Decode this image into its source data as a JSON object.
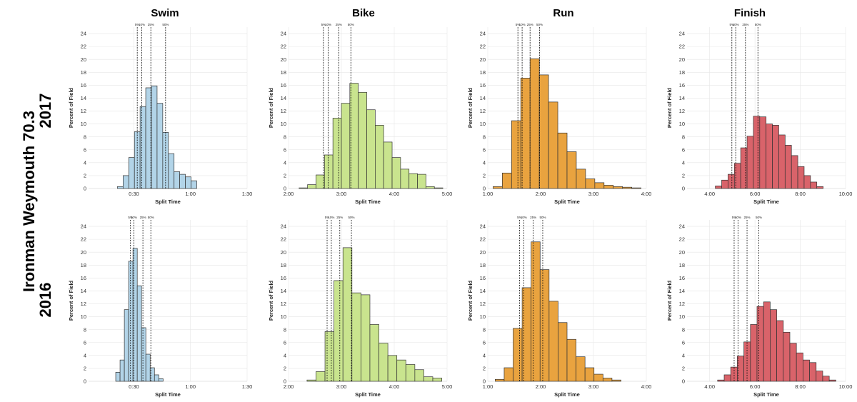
{
  "side_title": "Ironman Weymouth 70.3",
  "years": [
    "2017",
    "2016"
  ],
  "columns": [
    "Swim",
    "Bike",
    "Run",
    "Finish"
  ],
  "ylabel": "Percent of Field",
  "xlabel": "Split Time",
  "yticks": [
    "0",
    "2",
    "4",
    "6",
    "8",
    "10",
    "12",
    "14",
    "16",
    "18",
    "20",
    "22",
    "24"
  ],
  "percentile_labels": [
    "5%",
    "10%",
    "25%",
    "50%"
  ],
  "colors": {
    "Swim": "#b2d4e8",
    "Bike": "#c9e48e",
    "Run": "#e9a33f",
    "Finish": "#d9636a",
    "grid": "#e6e6e6",
    "edge": "#333333"
  },
  "chart_data": [
    {
      "type": "bar",
      "title": "Swim",
      "year": "2017",
      "xlabel": "Split Time",
      "ylabel": "Percent of Field",
      "ylim": [
        0,
        25
      ],
      "xlim": [
        0.1,
        1.5
      ],
      "xticks": [
        0.5,
        1.0,
        1.5
      ],
      "xtick_labels": [
        "0:30",
        "1:00",
        "1:30"
      ],
      "bin_start": 0.355,
      "bin_width": 0.05,
      "values": [
        0.3,
        2.0,
        4.8,
        8.8,
        12.7,
        15.6,
        15.9,
        13.2,
        8.7,
        5.4,
        2.6,
        2.2,
        1.8,
        1.2
      ],
      "percentiles": [
        0.53,
        0.57,
        0.65,
        0.78
      ]
    },
    {
      "type": "bar",
      "title": "Bike",
      "year": "2017",
      "xlabel": "Split Time",
      "ylabel": "Percent of Field",
      "ylim": [
        0,
        25
      ],
      "xlim": [
        2.0,
        5.0
      ],
      "xticks": [
        2.0,
        3.0,
        4.0,
        5.0
      ],
      "xtick_labels": [
        "2:00",
        "3:00",
        "4:00",
        "5:00"
      ],
      "bin_start": 2.2,
      "bin_width": 0.16,
      "values": [
        0.1,
        0.6,
        2.1,
        5.2,
        10.9,
        13.2,
        16.3,
        14.9,
        12.2,
        9.8,
        7.2,
        4.8,
        3.0,
        2.3,
        2.2,
        0.3,
        0.1
      ],
      "percentiles": [
        2.66,
        2.75,
        2.95,
        3.18
      ]
    },
    {
      "type": "bar",
      "title": "Run",
      "year": "2017",
      "xlabel": "Split Time",
      "ylabel": "Percent of Field",
      "ylim": [
        0,
        25
      ],
      "xlim": [
        1.0,
        4.0
      ],
      "xticks": [
        1.0,
        2.0,
        3.0,
        4.0
      ],
      "xtick_labels": [
        "1:00",
        "2:00",
        "3:00",
        "4:00"
      ],
      "bin_start": 1.1,
      "bin_width": 0.175,
      "values": [
        0.3,
        2.4,
        10.5,
        17.1,
        20.1,
        17.6,
        13.4,
        8.6,
        5.7,
        3.0,
        1.5,
        0.9,
        0.5,
        0.3,
        0.2,
        0.1
      ],
      "percentiles": [
        1.57,
        1.65,
        1.8,
        1.98
      ]
    },
    {
      "type": "bar",
      "title": "Finish",
      "year": "2017",
      "xlabel": "Split Time",
      "ylabel": "Percent of Field",
      "ylim": [
        0,
        25
      ],
      "xlim": [
        3.0,
        10.0
      ],
      "xticks": [
        4.0,
        6.0,
        8.0,
        10.0
      ],
      "xtick_labels": [
        "4:00",
        "6:00",
        "8:00",
        "10:00"
      ],
      "bin_start": 4.25,
      "bin_width": 0.28,
      "values": [
        0.4,
        1.3,
        2.2,
        3.9,
        6.3,
        8.1,
        11.2,
        11.1,
        10.0,
        9.8,
        8.3,
        6.7,
        5.1,
        3.4,
        2.0,
        1.0,
        0.3
      ],
      "percentiles": [
        4.98,
        5.15,
        5.58,
        6.13
      ]
    },
    {
      "type": "bar",
      "title": "Swim",
      "year": "2016",
      "xlabel": "Split Time",
      "ylabel": "Percent of Field",
      "ylim": [
        0,
        25
      ],
      "xlim": [
        0.1,
        1.5
      ],
      "xticks": [
        0.5,
        1.0,
        1.5
      ],
      "xtick_labels": [
        "0:30",
        "1:00",
        "1:30"
      ],
      "bin_start": 0.34,
      "bin_width": 0.038,
      "values": [
        1.4,
        3.3,
        11.1,
        18.6,
        20.6,
        14.8,
        8.3,
        4.2,
        2.1,
        1.0,
        0.4
      ],
      "percentiles": [
        0.47,
        0.5,
        0.58,
        0.65
      ]
    },
    {
      "type": "bar",
      "title": "Bike",
      "year": "2016",
      "xlabel": "Split Time",
      "ylabel": "Percent of Field",
      "ylim": [
        0,
        25
      ],
      "xlim": [
        2.0,
        5.0
      ],
      "xticks": [
        2.0,
        3.0,
        4.0,
        5.0
      ],
      "xtick_labels": [
        "2:00",
        "3:00",
        "4:00",
        "5:00"
      ],
      "bin_start": 2.35,
      "bin_width": 0.17,
      "values": [
        0.2,
        1.5,
        7.7,
        15.6,
        20.7,
        13.7,
        13.4,
        8.8,
        5.9,
        4.0,
        3.3,
        2.6,
        1.8,
        0.7,
        0.5
      ],
      "percentiles": [
        2.73,
        2.81,
        2.97,
        3.19
      ]
    },
    {
      "type": "bar",
      "title": "Run",
      "year": "2016",
      "xlabel": "Split Time",
      "ylabel": "Percent of Field",
      "ylim": [
        0,
        25
      ],
      "xlim": [
        1.0,
        4.0
      ],
      "xticks": [
        1.0,
        2.0,
        3.0,
        4.0
      ],
      "xtick_labels": [
        "1:00",
        "2:00",
        "3:00",
        "4:00"
      ],
      "bin_start": 1.14,
      "bin_width": 0.17,
      "values": [
        0.3,
        2.1,
        8.2,
        14.5,
        21.6,
        17.3,
        12.4,
        9.1,
        6.5,
        3.8,
        2.1,
        1.1,
        0.5,
        0.2
      ],
      "percentiles": [
        1.6,
        1.68,
        1.86,
        2.04
      ]
    },
    {
      "type": "bar",
      "title": "Finish",
      "year": "2016",
      "xlabel": "Split Time",
      "ylabel": "Percent of Field",
      "ylim": [
        0,
        25
      ],
      "xlim": [
        3.0,
        10.0
      ],
      "xticks": [
        4.0,
        6.0,
        8.0,
        10.0
      ],
      "xtick_labels": [
        "4:00",
        "6:00",
        "8:00",
        "10:00"
      ],
      "bin_start": 4.35,
      "bin_width": 0.29,
      "values": [
        0.2,
        1.0,
        2.2,
        3.9,
        6.1,
        8.8,
        11.6,
        12.3,
        11.1,
        9.4,
        7.6,
        5.9,
        4.4,
        3.3,
        2.9,
        1.6,
        0.8,
        0.2
      ],
      "percentiles": [
        5.08,
        5.25,
        5.65,
        6.17
      ]
    }
  ]
}
